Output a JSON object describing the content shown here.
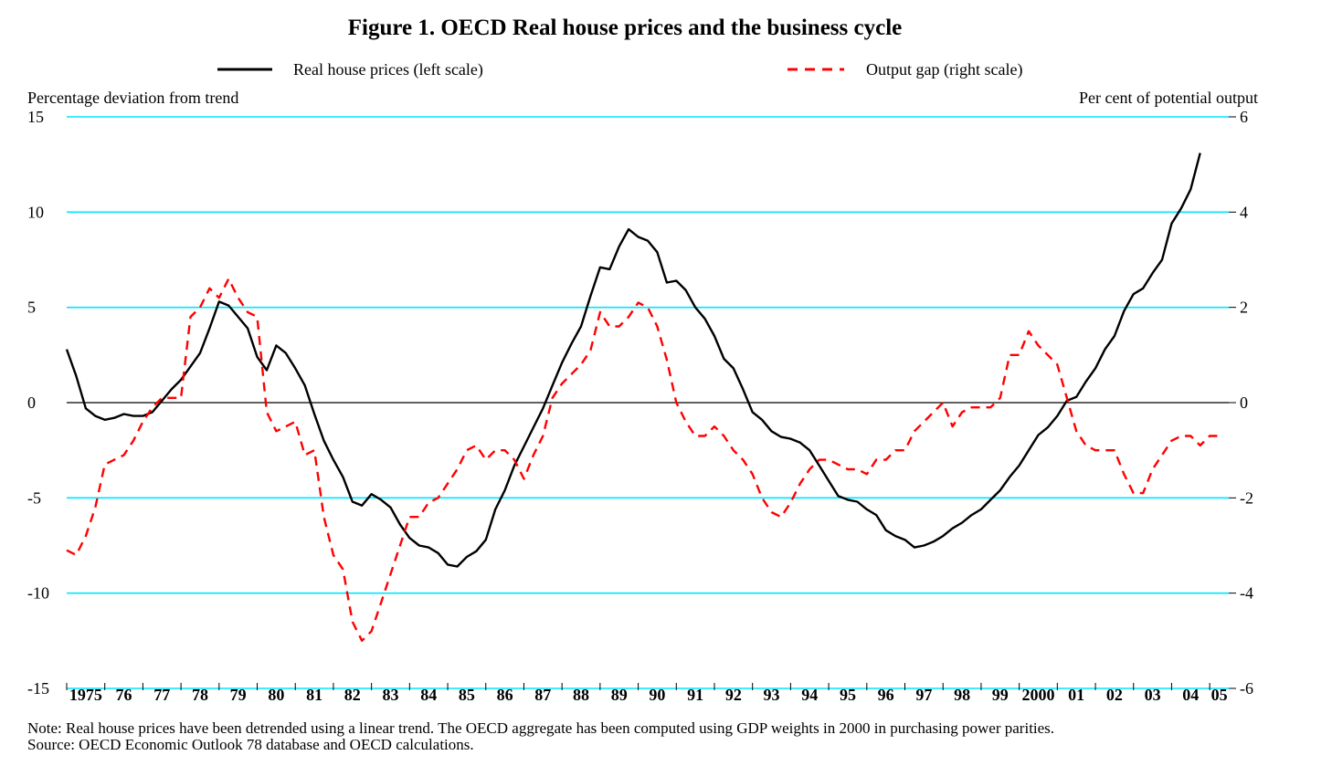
{
  "chart_data": {
    "type": "line",
    "title": "Figure 1. OECD Real house prices and the business cycle",
    "left_axis_label": "Percentage deviation from trend",
    "right_axis_label": "Per cent of potential output",
    "left_ylim": [
      -15,
      15
    ],
    "left_ticks": [
      "15",
      "10",
      "5",
      "0",
      "-5",
      "-10",
      "-15"
    ],
    "right_ylim": [
      -6,
      6
    ],
    "right_ticks": [
      "6",
      "4",
      "2",
      "0",
      "-2",
      "-4",
      "-6"
    ],
    "grid": true,
    "grid_color": "#00e5ff",
    "legend_position": "top",
    "x_start": 1975.0,
    "x_step": 0.25,
    "x_tick_labels": [
      "1975",
      "76",
      "77",
      "78",
      "79",
      "80",
      "81",
      "82",
      "83",
      "84",
      "85",
      "86",
      "87",
      "88",
      "89",
      "90",
      "91",
      "92",
      "93",
      "94",
      "95",
      "96",
      "97",
      "98",
      "99",
      "2000",
      "01",
      "02",
      "03",
      "04",
      "05"
    ],
    "series": [
      {
        "name": "Real house prices (left scale)",
        "axis": "left",
        "color": "#000000",
        "style": "solid",
        "values": [
          2.8,
          1.4,
          -0.3,
          -0.7,
          -0.9,
          -0.8,
          -0.6,
          -0.7,
          -0.7,
          -0.5,
          0.1,
          0.7,
          1.2,
          1.9,
          2.6,
          3.9,
          5.3,
          5.1,
          4.5,
          3.9,
          2.4,
          1.7,
          3.0,
          2.6,
          1.8,
          0.9,
          -0.6,
          -2.0,
          -3.0,
          -3.9,
          -5.2,
          -5.4,
          -4.8,
          -5.1,
          -5.5,
          -6.4,
          -7.1,
          -7.5,
          -7.6,
          -7.9,
          -8.5,
          -8.6,
          -8.1,
          -7.8,
          -7.2,
          -5.6,
          -4.6,
          -3.3,
          -2.3,
          -1.3,
          -0.3,
          0.9,
          2.1,
          3.1,
          4.0,
          5.6,
          7.1,
          7.0,
          8.2,
          9.1,
          8.7,
          8.5,
          7.9,
          6.3,
          6.4,
          5.9,
          5.0,
          4.4,
          3.5,
          2.3,
          1.8,
          0.7,
          -0.5,
          -0.9,
          -1.5,
          -1.8,
          -1.9,
          -2.1,
          -2.5,
          -3.3,
          -4.1,
          -4.9,
          -5.1,
          -5.2,
          -5.6,
          -5.9,
          -6.7,
          -7.0,
          -7.2,
          -7.6,
          -7.5,
          -7.3,
          -7.0,
          -6.6,
          -6.3,
          -5.9,
          -5.6,
          -5.1,
          -4.6,
          -3.9,
          -3.3,
          -2.5,
          -1.7,
          -1.3,
          -0.7,
          0.1,
          0.3,
          1.1,
          1.8,
          2.8,
          3.5,
          4.8,
          5.7,
          6.0,
          6.8,
          7.5,
          9.4,
          10.2,
          11.2,
          13.1
        ]
      },
      {
        "name": "Output gap (right scale)",
        "axis": "right",
        "color": "#ff0000",
        "style": "dashed",
        "values": [
          -3.1,
          -3.2,
          -2.8,
          -2.2,
          -1.3,
          -1.2,
          -1.1,
          -0.8,
          -0.4,
          -0.1,
          0.1,
          0.1,
          0.1,
          1.8,
          2.0,
          2.4,
          2.2,
          2.6,
          2.2,
          1.9,
          1.8,
          -0.2,
          -0.6,
          -0.5,
          -0.4,
          -1.1,
          -1.0,
          -2.4,
          -3.2,
          -3.5,
          -4.6,
          -5.0,
          -4.8,
          -4.2,
          -3.6,
          -3.0,
          -2.4,
          -2.4,
          -2.1,
          -2.0,
          -1.7,
          -1.4,
          -1.0,
          -0.9,
          -1.2,
          -1.0,
          -1.0,
          -1.2,
          -1.6,
          -1.1,
          -0.7,
          0.1,
          0.4,
          0.6,
          0.8,
          1.1,
          1.9,
          1.6,
          1.6,
          1.8,
          2.1,
          2.0,
          1.6,
          0.9,
          0.0,
          -0.4,
          -0.7,
          -0.7,
          -0.5,
          -0.7,
          -1.0,
          -1.2,
          -1.5,
          -2.0,
          -2.3,
          -2.4,
          -2.1,
          -1.7,
          -1.4,
          -1.2,
          -1.2,
          -1.3,
          -1.4,
          -1.4,
          -1.5,
          -1.2,
          -1.2,
          -1.0,
          -1.0,
          -0.6,
          -0.4,
          -0.2,
          0.0,
          -0.5,
          -0.2,
          -0.1,
          -0.1,
          -0.1,
          0.1,
          1.0,
          1.0,
          1.5,
          1.2,
          1.0,
          0.8,
          0.1,
          -0.6,
          -0.9,
          -1.0,
          -1.0,
          -1.0,
          -1.5,
          -1.9,
          -1.9,
          -1.4,
          -1.1,
          -0.8,
          -0.7,
          -0.7,
          -0.9,
          -0.7,
          -0.7
        ]
      }
    ],
    "notes": [
      "Note: Real house prices have been detrended using a linear trend. The OECD aggregate has been computed using GDP weights in 2000 in purchasing power parities.",
      "Source: OECD Economic Outlook 78 database and OECD calculations."
    ]
  }
}
